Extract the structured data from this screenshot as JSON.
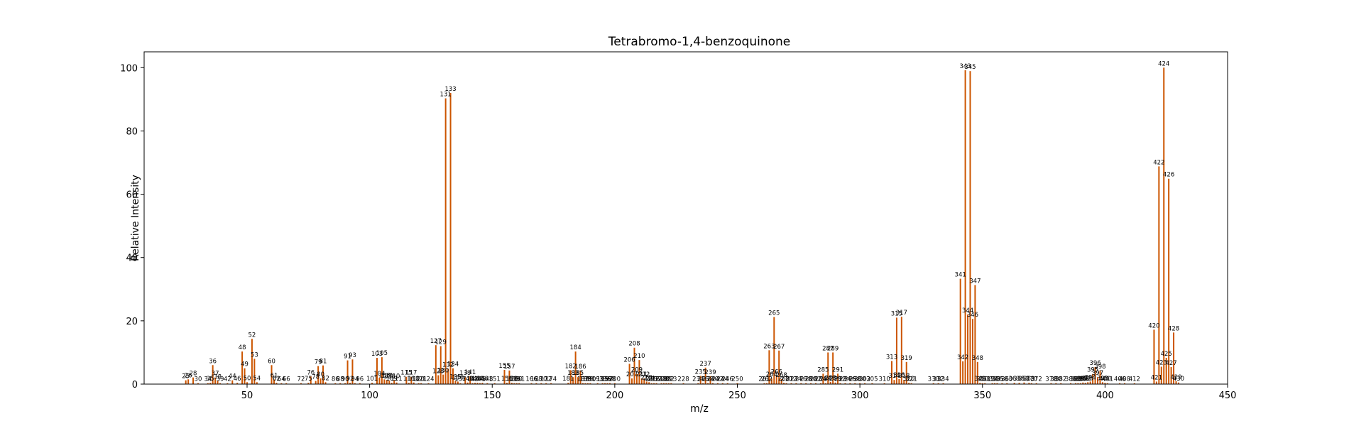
{
  "chart_data": {
    "type": "bar",
    "title": "Tetrabromo-1,4-benzoquinone",
    "xlabel": "m/z",
    "ylabel": "Relative Intensity",
    "xlim": [
      8,
      450
    ],
    "ylim": [
      0,
      105
    ],
    "xticks": [
      50,
      100,
      150,
      200,
      250,
      300,
      350,
      400,
      450
    ],
    "yticks": [
      0,
      20,
      40,
      60,
      80,
      100
    ],
    "grid": false,
    "bar_color": "#cc5500",
    "peaks": [
      {
        "mz": 26,
        "i": 1.5,
        "lbl": "26"
      },
      {
        "mz": 25,
        "i": 1.2,
        "lbl": "25"
      },
      {
        "mz": 28,
        "i": 2.1,
        "lbl": "28"
      },
      {
        "mz": 30,
        "i": 0.3,
        "lbl": "30"
      },
      {
        "mz": 34,
        "i": 0.3,
        "lbl": "34"
      },
      {
        "mz": 35,
        "i": 0.4,
        "lbl": "35"
      },
      {
        "mz": 36,
        "i": 6.0,
        "lbl": "36"
      },
      {
        "mz": 37,
        "i": 2.1,
        "lbl": "37"
      },
      {
        "mz": 38,
        "i": 1.0,
        "lbl": "38"
      },
      {
        "mz": 39,
        "i": 0.3,
        "lbl": "39"
      },
      {
        "mz": 42,
        "i": 0.3,
        "lbl": "42"
      },
      {
        "mz": 44,
        "i": 1.2,
        "lbl": "44"
      },
      {
        "mz": 46,
        "i": 0.4,
        "lbl": "46"
      },
      {
        "mz": 48,
        "i": 10.3,
        "lbl": "48"
      },
      {
        "mz": 49,
        "i": 5.0,
        "lbl": "49"
      },
      {
        "mz": 50,
        "i": 0.6,
        "lbl": "50"
      },
      {
        "mz": 52,
        "i": 14.3,
        "lbl": "52"
      },
      {
        "mz": 53,
        "i": 8.0,
        "lbl": "53"
      },
      {
        "mz": 54,
        "i": 0.6,
        "lbl": "54"
      },
      {
        "mz": 60,
        "i": 6.0,
        "lbl": "60"
      },
      {
        "mz": 61,
        "i": 1.5,
        "lbl": "61"
      },
      {
        "mz": 62,
        "i": 0.4,
        "lbl": "62"
      },
      {
        "mz": 64,
        "i": 0.3,
        "lbl": "64"
      },
      {
        "mz": 66,
        "i": 0.3,
        "lbl": "66"
      },
      {
        "mz": 72,
        "i": 0.3,
        "lbl": "72"
      },
      {
        "mz": 75,
        "i": 0.4,
        "lbl": "75"
      },
      {
        "mz": 76,
        "i": 2.4,
        "lbl": "76"
      },
      {
        "mz": 78,
        "i": 1.0,
        "lbl": "78"
      },
      {
        "mz": 79,
        "i": 5.7,
        "lbl": "79"
      },
      {
        "mz": 80,
        "i": 1.8,
        "lbl": "80"
      },
      {
        "mz": 81,
        "i": 5.9,
        "lbl": "81"
      },
      {
        "mz": 82,
        "i": 0.6,
        "lbl": "82"
      },
      {
        "mz": 86,
        "i": 0.3,
        "lbl": "86"
      },
      {
        "mz": 88,
        "i": 0.3,
        "lbl": "88"
      },
      {
        "mz": 90,
        "i": 0.3,
        "lbl": "90"
      },
      {
        "mz": 91,
        "i": 7.5,
        "lbl": "91"
      },
      {
        "mz": 92,
        "i": 0.4,
        "lbl": "92"
      },
      {
        "mz": 93,
        "i": 7.8,
        "lbl": "93"
      },
      {
        "mz": 94,
        "i": 0.3,
        "lbl": "94"
      },
      {
        "mz": 96,
        "i": 0.3,
        "lbl": "96"
      },
      {
        "mz": 101,
        "i": 0.4,
        "lbl": "101"
      },
      {
        "mz": 103,
        "i": 8.3,
        "lbl": "103"
      },
      {
        "mz": 104,
        "i": 2.0,
        "lbl": "104"
      },
      {
        "mz": 105,
        "i": 8.5,
        "lbl": "105"
      },
      {
        "mz": 106,
        "i": 1.5,
        "lbl": "106"
      },
      {
        "mz": 107,
        "i": 1.3,
        "lbl": "107"
      },
      {
        "mz": 108,
        "i": 1.1,
        "lbl": "108"
      },
      {
        "mz": 109,
        "i": 0.4,
        "lbl": "109"
      },
      {
        "mz": 110,
        "i": 1.2,
        "lbl": "110"
      },
      {
        "mz": 111,
        "i": 0.5,
        "lbl": "111"
      },
      {
        "mz": 115,
        "i": 2.3,
        "lbl": "115"
      },
      {
        "mz": 116,
        "i": 0.4,
        "lbl": "116"
      },
      {
        "mz": 117,
        "i": 2.3,
        "lbl": "117"
      },
      {
        "mz": 118,
        "i": 0.5,
        "lbl": "118"
      },
      {
        "mz": 120,
        "i": 0.3,
        "lbl": "120"
      },
      {
        "mz": 121,
        "i": 0.3,
        "lbl": "121"
      },
      {
        "mz": 124,
        "i": 0.3,
        "lbl": "124"
      },
      {
        "mz": 127,
        "i": 12.3,
        "lbl": "127"
      },
      {
        "mz": 128,
        "i": 2.8,
        "lbl": "128"
      },
      {
        "mz": 129,
        "i": 12.0,
        "lbl": "129"
      },
      {
        "mz": 130,
        "i": 3.0,
        "lbl": "130"
      },
      {
        "mz": 131,
        "i": 90.3,
        "lbl": "131"
      },
      {
        "mz": 132,
        "i": 4.8,
        "lbl": "132"
      },
      {
        "mz": 133,
        "i": 92.0,
        "lbl": "133"
      },
      {
        "mz": 134,
        "i": 5.0,
        "lbl": "134"
      },
      {
        "mz": 135,
        "i": 1.0,
        "lbl": "135"
      },
      {
        "mz": 136,
        "i": 0.8,
        "lbl": "136"
      },
      {
        "mz": 137,
        "i": 0.3,
        "lbl": "137"
      },
      {
        "mz": 139,
        "i": 2.2,
        "lbl": "139"
      },
      {
        "mz": 140,
        "i": 0.5,
        "lbl": "140"
      },
      {
        "mz": 141,
        "i": 2.5,
        "lbl": "141"
      },
      {
        "mz": 142,
        "i": 0.3,
        "lbl": "142"
      },
      {
        "mz": 143,
        "i": 0.4,
        "lbl": "143"
      },
      {
        "mz": 144,
        "i": 0.4,
        "lbl": "144"
      },
      {
        "mz": 145,
        "i": 0.3,
        "lbl": "145"
      },
      {
        "mz": 146,
        "i": 0.4,
        "lbl": "146"
      },
      {
        "mz": 148,
        "i": 0.3,
        "lbl": "148"
      },
      {
        "mz": 151,
        "i": 0.3,
        "lbl": "151"
      },
      {
        "mz": 155,
        "i": 4.5,
        "lbl": "155"
      },
      {
        "mz": 156,
        "i": 0.4,
        "lbl": "156"
      },
      {
        "mz": 157,
        "i": 4.3,
        "lbl": "157"
      },
      {
        "mz": 158,
        "i": 0.4,
        "lbl": "158"
      },
      {
        "mz": 159,
        "i": 0.3,
        "lbl": "159"
      },
      {
        "mz": 160,
        "i": 0.3,
        "lbl": "160"
      },
      {
        "mz": 161,
        "i": 0.3,
        "lbl": "161"
      },
      {
        "mz": 166,
        "i": 0.3,
        "lbl": "166"
      },
      {
        "mz": 168,
        "i": 0.3,
        "lbl": "168"
      },
      {
        "mz": 170,
        "i": 0.3,
        "lbl": "170"
      },
      {
        "mz": 172,
        "i": 0.3,
        "lbl": "172"
      },
      {
        "mz": 174,
        "i": 0.3,
        "lbl": "174"
      },
      {
        "mz": 181,
        "i": 0.4,
        "lbl": "181"
      },
      {
        "mz": 182,
        "i": 4.4,
        "lbl": "182"
      },
      {
        "mz": 183,
        "i": 2.2,
        "lbl": "183"
      },
      {
        "mz": 184,
        "i": 10.3,
        "lbl": "184"
      },
      {
        "mz": 185,
        "i": 2.2,
        "lbl": "185"
      },
      {
        "mz": 186,
        "i": 4.3,
        "lbl": "186"
      },
      {
        "mz": 187,
        "i": 0.3,
        "lbl": "187"
      },
      {
        "mz": 188,
        "i": 0.3,
        "lbl": "188"
      },
      {
        "mz": 189,
        "i": 0.3,
        "lbl": "189"
      },
      {
        "mz": 190,
        "i": 0.3,
        "lbl": "190"
      },
      {
        "mz": 193,
        "i": 0.3,
        "lbl": "193"
      },
      {
        "mz": 195,
        "i": 0.3,
        "lbl": "195"
      },
      {
        "mz": 196,
        "i": 0.3,
        "lbl": "196"
      },
      {
        "mz": 197,
        "i": 0.3,
        "lbl": "197"
      },
      {
        "mz": 198,
        "i": 0.3,
        "lbl": "198"
      },
      {
        "mz": 200,
        "i": 0.3,
        "lbl": "200"
      },
      {
        "mz": 206,
        "i": 6.4,
        "lbl": "206"
      },
      {
        "mz": 207,
        "i": 1.8,
        "lbl": "207"
      },
      {
        "mz": 208,
        "i": 11.5,
        "lbl": "208"
      },
      {
        "mz": 209,
        "i": 3.2,
        "lbl": "209"
      },
      {
        "mz": 210,
        "i": 7.6,
        "lbl": "210"
      },
      {
        "mz": 211,
        "i": 1.8,
        "lbl": "211"
      },
      {
        "mz": 212,
        "i": 1.8,
        "lbl": "212"
      },
      {
        "mz": 213,
        "i": 0.8,
        "lbl": "213"
      },
      {
        "mz": 214,
        "i": 0.6,
        "lbl": "214"
      },
      {
        "mz": 215,
        "i": 0.3,
        "lbl": "215"
      },
      {
        "mz": 216,
        "i": 0.3,
        "lbl": "216"
      },
      {
        "mz": 217,
        "i": 0.3,
        "lbl": "217"
      },
      {
        "mz": 219,
        "i": 0.3,
        "lbl": "219"
      },
      {
        "mz": 220,
        "i": 0.3,
        "lbl": "220"
      },
      {
        "mz": 221,
        "i": 0.3,
        "lbl": "221"
      },
      {
        "mz": 222,
        "i": 0.3,
        "lbl": "222"
      },
      {
        "mz": 223,
        "i": 0.3,
        "lbl": "223"
      },
      {
        "mz": 228,
        "i": 0.3,
        "lbl": "228"
      },
      {
        "mz": 234,
        "i": 0.3,
        "lbl": "234"
      },
      {
        "mz": 235,
        "i": 2.6,
        "lbl": "235"
      },
      {
        "mz": 236,
        "i": 0.3,
        "lbl": "236"
      },
      {
        "mz": 237,
        "i": 5.2,
        "lbl": "237"
      },
      {
        "mz": 238,
        "i": 0.3,
        "lbl": "238"
      },
      {
        "mz": 239,
        "i": 2.5,
        "lbl": "239"
      },
      {
        "mz": 240,
        "i": 0.3,
        "lbl": "240"
      },
      {
        "mz": 242,
        "i": 0.3,
        "lbl": "242"
      },
      {
        "mz": 244,
        "i": 0.3,
        "lbl": "244"
      },
      {
        "mz": 246,
        "i": 0.3,
        "lbl": "246"
      },
      {
        "mz": 250,
        "i": 0.3,
        "lbl": "250"
      },
      {
        "mz": 261,
        "i": 0.3,
        "lbl": "261"
      },
      {
        "mz": 262,
        "i": 0.3,
        "lbl": "262"
      },
      {
        "mz": 263,
        "i": 10.7,
        "lbl": "263"
      },
      {
        "mz": 264,
        "i": 1.8,
        "lbl": "264"
      },
      {
        "mz": 265,
        "i": 21.2,
        "lbl": "265"
      },
      {
        "mz": 266,
        "i": 2.6,
        "lbl": "266"
      },
      {
        "mz": 267,
        "i": 10.6,
        "lbl": "267"
      },
      {
        "mz": 268,
        "i": 1.6,
        "lbl": "268"
      },
      {
        "mz": 269,
        "i": 0.4,
        "lbl": "269"
      },
      {
        "mz": 270,
        "i": 0.3,
        "lbl": "270"
      },
      {
        "mz": 272,
        "i": 0.3,
        "lbl": "272"
      },
      {
        "mz": 274,
        "i": 0.3,
        "lbl": "274"
      },
      {
        "mz": 276,
        "i": 0.3,
        "lbl": "276"
      },
      {
        "mz": 278,
        "i": 0.3,
        "lbl": "278"
      },
      {
        "mz": 280,
        "i": 0.3,
        "lbl": "280"
      },
      {
        "mz": 282,
        "i": 0.3,
        "lbl": "282"
      },
      {
        "mz": 284,
        "i": 0.3,
        "lbl": "284"
      },
      {
        "mz": 285,
        "i": 3.3,
        "lbl": "285"
      },
      {
        "mz": 286,
        "i": 0.3,
        "lbl": "286"
      },
      {
        "mz": 287,
        "i": 10.0,
        "lbl": "287"
      },
      {
        "mz": 288,
        "i": 0.7,
        "lbl": "288"
      },
      {
        "mz": 289,
        "i": 10.0,
        "lbl": "289"
      },
      {
        "mz": 290,
        "i": 0.5,
        "lbl": "290"
      },
      {
        "mz": 291,
        "i": 3.3,
        "lbl": "291"
      },
      {
        "mz": 292,
        "i": 0.3,
        "lbl": "292"
      },
      {
        "mz": 294,
        "i": 0.3,
        "lbl": "294"
      },
      {
        "mz": 296,
        "i": 0.3,
        "lbl": "296"
      },
      {
        "mz": 298,
        "i": 0.3,
        "lbl": "298"
      },
      {
        "mz": 300,
        "i": 0.3,
        "lbl": "300"
      },
      {
        "mz": 302,
        "i": 0.3,
        "lbl": "302"
      },
      {
        "mz": 305,
        "i": 0.3,
        "lbl": "305"
      },
      {
        "mz": 310,
        "i": 0.3,
        "lbl": "310"
      },
      {
        "mz": 313,
        "i": 7.3,
        "lbl": "313"
      },
      {
        "mz": 314,
        "i": 1.3,
        "lbl": "314"
      },
      {
        "mz": 315,
        "i": 21.0,
        "lbl": "315"
      },
      {
        "mz": 316,
        "i": 1.6,
        "lbl": "316"
      },
      {
        "mz": 317,
        "i": 21.3,
        "lbl": "317"
      },
      {
        "mz": 318,
        "i": 1.3,
        "lbl": "318"
      },
      {
        "mz": 319,
        "i": 7.0,
        "lbl": "319"
      },
      {
        "mz": 320,
        "i": 0.4,
        "lbl": "320"
      },
      {
        "mz": 321,
        "i": 0.3,
        "lbl": "321"
      },
      {
        "mz": 330,
        "i": 0.3,
        "lbl": "330"
      },
      {
        "mz": 332,
        "i": 0.3,
        "lbl": "332"
      },
      {
        "mz": 334,
        "i": 0.3,
        "lbl": "334"
      },
      {
        "mz": 341,
        "i": 33.3,
        "lbl": "341"
      },
      {
        "mz": 342,
        "i": 7.2,
        "lbl": "342"
      },
      {
        "mz": 343,
        "i": 99.2,
        "lbl": "343"
      },
      {
        "mz": 344,
        "i": 22.0,
        "lbl": "344"
      },
      {
        "mz": 345,
        "i": 98.9,
        "lbl": "345"
      },
      {
        "mz": 346,
        "i": 20.6,
        "lbl": "346"
      },
      {
        "mz": 347,
        "i": 31.3,
        "lbl": "347"
      },
      {
        "mz": 348,
        "i": 7.0,
        "lbl": "348"
      },
      {
        "mz": 349,
        "i": 0.4,
        "lbl": "349"
      },
      {
        "mz": 350,
        "i": 0.3,
        "lbl": "350"
      },
      {
        "mz": 351,
        "i": 0.3,
        "lbl": "351"
      },
      {
        "mz": 354,
        "i": 0.3,
        "lbl": "354"
      },
      {
        "mz": 355,
        "i": 0.3,
        "lbl": "355"
      },
      {
        "mz": 356,
        "i": 0.3,
        "lbl": "356"
      },
      {
        "mz": 358,
        "i": 0.3,
        "lbl": "358"
      },
      {
        "mz": 360,
        "i": 0.3,
        "lbl": "360"
      },
      {
        "mz": 363,
        "i": 0.4,
        "lbl": "363"
      },
      {
        "mz": 365,
        "i": 0.4,
        "lbl": "365"
      },
      {
        "mz": 367,
        "i": 0.5,
        "lbl": "367"
      },
      {
        "mz": 369,
        "i": 0.4,
        "lbl": "369"
      },
      {
        "mz": 370,
        "i": 0.3,
        "lbl": "370"
      },
      {
        "mz": 372,
        "i": 0.3,
        "lbl": "372"
      },
      {
        "mz": 378,
        "i": 0.3,
        "lbl": "378"
      },
      {
        "mz": 380,
        "i": 0.3,
        "lbl": "380"
      },
      {
        "mz": 382,
        "i": 0.3,
        "lbl": "382"
      },
      {
        "mz": 386,
        "i": 0.3,
        "lbl": "386"
      },
      {
        "mz": 388,
        "i": 0.3,
        "lbl": "388"
      },
      {
        "mz": 389,
        "i": 0.3,
        "lbl": "389"
      },
      {
        "mz": 390,
        "i": 0.3,
        "lbl": "390"
      },
      {
        "mz": 391,
        "i": 0.5,
        "lbl": "391"
      },
      {
        "mz": 392,
        "i": 0.4,
        "lbl": "392"
      },
      {
        "mz": 393,
        "i": 0.6,
        "lbl": "393"
      },
      {
        "mz": 394,
        "i": 0.8,
        "lbl": "394"
      },
      {
        "mz": 395,
        "i": 3.2,
        "lbl": "395"
      },
      {
        "mz": 396,
        "i": 5.4,
        "lbl": "396"
      },
      {
        "mz": 397,
        "i": 2.2,
        "lbl": "397"
      },
      {
        "mz": 398,
        "i": 4.3,
        "lbl": "398"
      },
      {
        "mz": 399,
        "i": 0.6,
        "lbl": "399"
      },
      {
        "mz": 400,
        "i": 0.4,
        "lbl": "400"
      },
      {
        "mz": 401,
        "i": 0.3,
        "lbl": "401"
      },
      {
        "mz": 406,
        "i": 0.3,
        "lbl": "406"
      },
      {
        "mz": 408,
        "i": 0.3,
        "lbl": "408"
      },
      {
        "mz": 412,
        "i": 0.3,
        "lbl": "412"
      },
      {
        "mz": 420,
        "i": 17.2,
        "lbl": "420"
      },
      {
        "mz": 421,
        "i": 0.8,
        "lbl": "421"
      },
      {
        "mz": 422,
        "i": 68.8,
        "lbl": "422"
      },
      {
        "mz": 423,
        "i": 5.5,
        "lbl": "423"
      },
      {
        "mz": 424,
        "i": 100,
        "lbl": "424"
      },
      {
        "mz": 425,
        "i": 8.3,
        "lbl": "425"
      },
      {
        "mz": 426,
        "i": 64.9,
        "lbl": "426"
      },
      {
        "mz": 427,
        "i": 5.4,
        "lbl": "427"
      },
      {
        "mz": 428,
        "i": 16.3,
        "lbl": "428"
      },
      {
        "mz": 429,
        "i": 0.9,
        "lbl": "429"
      },
      {
        "mz": 430,
        "i": 0.5,
        "lbl": "430"
      }
    ]
  }
}
